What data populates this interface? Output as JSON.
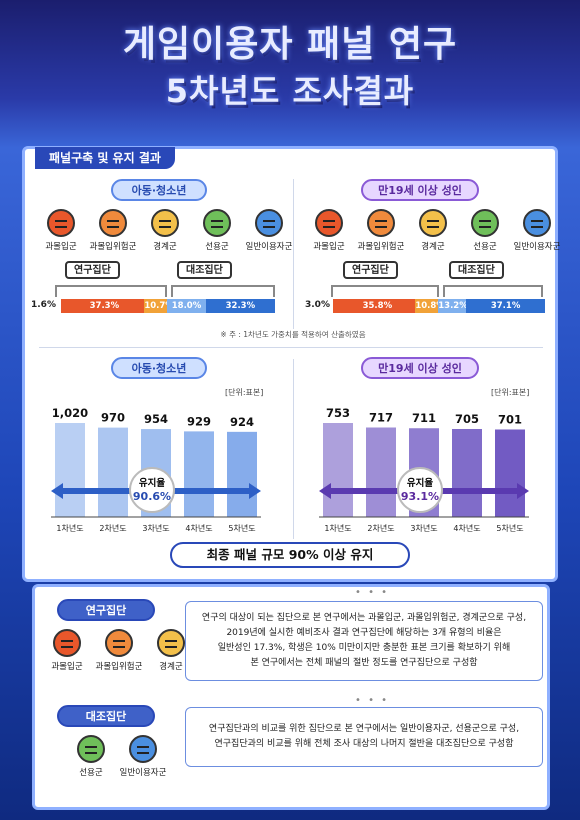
{
  "title": {
    "line1": "게임이용자 패널 연구",
    "line2": "5차년도 조사결과"
  },
  "section": "패널구축 및 유지 결과",
  "colors": {
    "research": "#e8572b",
    "control": "#2f6fd0",
    "gray": "#a9a9a9",
    "youth_bar": "#8fb4ef",
    "adult_bar": "#7e68c8"
  },
  "composition": {
    "youth": {
      "label": "아동·청소년",
      "avatars": [
        "과몰입군",
        "과몰입위험군",
        "경계군",
        "선용군",
        "일반이용자군"
      ],
      "research_group": "연구집단",
      "control_group": "대조집단",
      "segments": [
        {
          "label": "1.6%",
          "value": 1.6,
          "color": "#e8572b"
        },
        {
          "label": "37.3%",
          "value": 37.3,
          "color": "#e8572b"
        },
        {
          "label": "10.7%",
          "value": 10.7,
          "color": "#f1a238"
        },
        {
          "label": "18.0%",
          "value": 18.0,
          "color": "#7fb0ee"
        },
        {
          "label": "32.3%",
          "value": 32.3,
          "color": "#2f6fd0"
        }
      ]
    },
    "adult": {
      "label": "만19세 이상 성인",
      "avatars": [
        "과몰입군",
        "과몰입위험군",
        "경계군",
        "선용군",
        "일반이용자군"
      ],
      "research_group": "연구집단",
      "control_group": "대조집단",
      "segments": [
        {
          "label": "3.0%",
          "value": 3.0,
          "color": "#e8572b"
        },
        {
          "label": "35.8%",
          "value": 35.8,
          "color": "#e8572b"
        },
        {
          "label": "10.8%",
          "value": 10.8,
          "color": "#f1a238"
        },
        {
          "label": "13.2%",
          "value": 13.2,
          "color": "#7fb0ee"
        },
        {
          "label": "37.1%",
          "value": 37.1,
          "color": "#2f6fd0"
        }
      ]
    },
    "note": "※ 주 : 1차년도 가중치를 적용하여 산출하였음"
  },
  "chart_data": [
    {
      "type": "bar",
      "title": "아동·청소년",
      "unit": "[단위:표본]",
      "categories": [
        "1차년도",
        "2차년도",
        "3차년도",
        "4차년도",
        "5차년도"
      ],
      "values": [
        1020,
        970,
        954,
        929,
        924
      ],
      "value_labels": [
        "1,020",
        "970",
        "954",
        "929",
        "924"
      ],
      "retention_label": "유지율",
      "retention_value": "90.6%"
    },
    {
      "type": "bar",
      "title": "만19세 이상 성인",
      "unit": "[단위:표본]",
      "categories": [
        "1차년도",
        "2차년도",
        "3차년도",
        "4차년도",
        "5차년도"
      ],
      "values": [
        753,
        717,
        711,
        705,
        701
      ],
      "value_labels": [
        "753",
        "717",
        "711",
        "705",
        "701"
      ],
      "retention_label": "유지율",
      "retention_value": "93.1%"
    }
  ],
  "summary": "최종 패널 규모 90% 이상 유지",
  "groups": {
    "research": {
      "label": "연구집단",
      "avatars": [
        "과몰입군",
        "과몰입위험군",
        "경계군"
      ],
      "text": [
        "연구의 대상이 되는 집단으로 본 연구에서는 과몰입군, 과몰입위험군, 경계군으로 구성,",
        "2019년에 실시한 예비조사 결과 연구집단에 해당하는 3개 유형의 비율은",
        "일반성인 17.3%, 학생은 10% 미만이지만 충분한 표본 크기를 확보하기 위해",
        "본 연구에서는 전체 패널의 절반 정도를 연구집단으로 구성함"
      ]
    },
    "control": {
      "label": "대조집단",
      "avatars": [
        "선용군",
        "일반이용자군"
      ],
      "text": [
        "연구집단과의 비교를 위한 집단으로 본 연구에서는 일반이용자군, 선용군으로 구성,",
        "연구집단과의 비교를 위해 전체 조사 대상의 나머지 절반을 대조집단으로 구성함"
      ]
    }
  }
}
